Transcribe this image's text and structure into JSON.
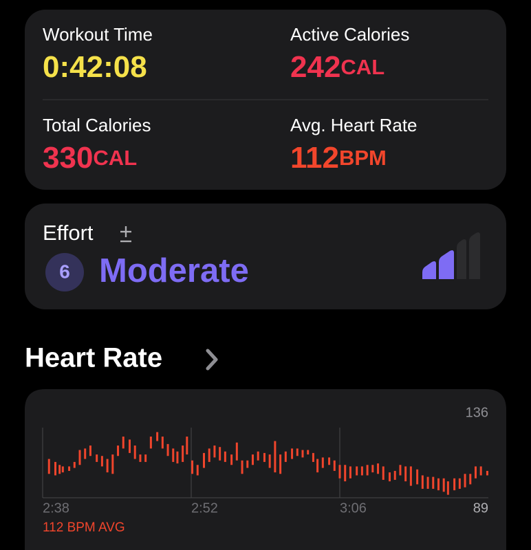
{
  "metrics": [
    {
      "label": "Workout Time",
      "value": "0:42:08",
      "color": "#f5e14a"
    },
    {
      "label": "Active Calories",
      "value": "242",
      "unit": "CAL",
      "color": "#f0334f"
    },
    {
      "label": "Total Calories",
      "value": "330",
      "unit": "CAL",
      "color": "#f0334f"
    },
    {
      "label": "Avg. Heart Rate",
      "value": "112",
      "unit": "BPM",
      "color": "#f2462c"
    }
  ],
  "effort": {
    "title": "Effort",
    "level": "6",
    "label": "Moderate"
  },
  "section_title": "Heart Rate",
  "chart_data": {
    "type": "range_bar",
    "subtitle": "112 BPM AVG",
    "color": "#f0452c",
    "xlim": [
      0,
      42
    ],
    "xticks": [
      {
        "value": 0,
        "label": "2:38"
      },
      {
        "value": 14,
        "label": "2:52"
      },
      {
        "value": 28,
        "label": "3:06"
      }
    ],
    "ylim": [
      89,
      136
    ],
    "yticks": [
      89,
      136
    ],
    "grid": "x",
    "x": [
      0.6,
      1.2,
      1.6,
      1.9,
      2.5,
      3.0,
      3.5,
      4.0,
      4.5,
      5.1,
      5.6,
      6.1,
      6.6,
      7.1,
      7.6,
      8.2,
      8.7,
      9.2,
      9.7,
      10.2,
      10.8,
      11.3,
      11.8,
      12.3,
      12.7,
      13.2,
      13.6,
      14.1,
      14.6,
      15.2,
      15.7,
      16.2,
      16.7,
      17.2,
      17.8,
      18.3,
      18.8,
      19.3,
      19.8,
      20.3,
      20.9,
      21.4,
      21.9,
      22.4,
      22.9,
      23.5,
      24.0,
      24.5,
      25.0,
      25.5,
      25.9,
      26.4,
      27.0,
      27.5,
      28.0,
      28.5,
      29.0,
      29.6,
      30.1,
      30.6,
      31.1,
      31.6,
      32.1,
      32.7,
      33.2,
      33.7,
      34.2,
      34.7,
      35.3,
      35.8,
      36.3,
      36.8,
      37.3,
      37.8,
      38.2,
      38.8,
      39.3,
      39.8,
      40.3,
      40.8,
      41.3,
      41.9
    ],
    "low": [
      105,
      104,
      105,
      106,
      107,
      109,
      111,
      115,
      117,
      113,
      110,
      106,
      105,
      117,
      122,
      119,
      115,
      113,
      113,
      122,
      127,
      122,
      117,
      113,
      112,
      113,
      118,
      105,
      104,
      109,
      113,
      116,
      114,
      113,
      111,
      114,
      105,
      109,
      111,
      114,
      113,
      109,
      106,
      105,
      113,
      115,
      117,
      116,
      118,
      113,
      106,
      109,
      111,
      107,
      102,
      100,
      102,
      104,
      104,
      104,
      106,
      105,
      101,
      100,
      101,
      104,
      100,
      97,
      98,
      95,
      95,
      95,
      94,
      93,
      91,
      94,
      95,
      96,
      98,
      102,
      104,
      104
    ],
    "high": [
      115,
      113,
      111,
      110,
      110,
      113,
      121,
      122,
      124,
      118,
      117,
      115,
      118,
      124,
      130,
      128,
      124,
      118,
      118,
      130,
      133,
      130,
      125,
      122,
      120,
      124,
      130,
      114,
      111,
      119,
      122,
      124,
      123,
      120,
      118,
      126,
      114,
      114,
      118,
      120,
      119,
      118,
      127,
      118,
      120,
      122,
      122,
      121,
      121,
      119,
      115,
      116,
      116,
      114,
      111,
      111,
      110,
      110,
      110,
      111,
      111,
      112,
      110,
      106,
      107,
      111,
      110,
      110,
      108,
      104,
      103,
      103,
      102,
      102,
      100,
      102,
      102,
      105,
      105,
      110,
      110,
      107
    ]
  }
}
